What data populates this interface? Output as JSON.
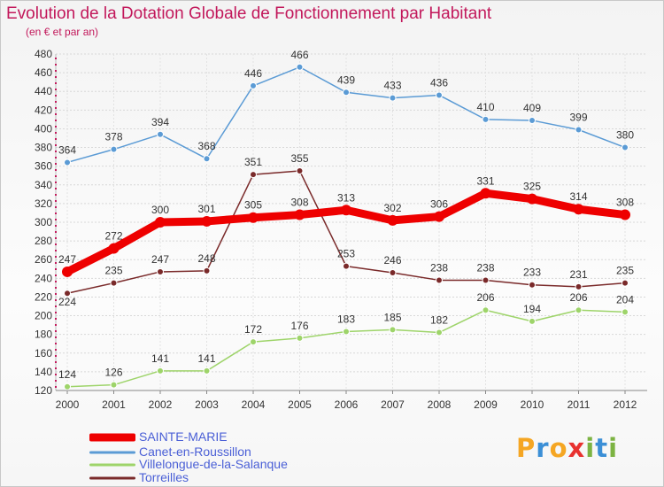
{
  "header": {
    "title": "Evolution de la Dotation Globale de Fonctionnement par Habitant",
    "subtitle": "(en € et par an)"
  },
  "logo": {
    "text": "Proxiti",
    "letters": [
      "P",
      "r",
      "o",
      "x",
      "i",
      "t",
      "i"
    ],
    "colors": [
      "#f5a623",
      "#3b8fd6",
      "#f5a623",
      "#e8312f",
      "#7cb342",
      "#3b8fd6",
      "#7cb342"
    ]
  },
  "legend": {
    "items": [
      {
        "label": "SAINTE-MARIE",
        "color": "#ee0000",
        "thick": true
      },
      {
        "label": "Canet-en-Roussillon",
        "color": "#5b9bd5",
        "thick": false
      },
      {
        "label": "Villelongue-de-la-Salanque",
        "color": "#9ed46a",
        "thick": false
      },
      {
        "label": "Torreilles",
        "color": "#7a2a2a",
        "thick": false
      }
    ]
  },
  "chart_data": {
    "type": "line",
    "title": "Evolution de la Dotation Globale de Fonctionnement par Habitant",
    "subtitle": "(en € et par an)",
    "x": [
      "2000",
      "2001",
      "2002",
      "2003",
      "2004",
      "2005",
      "2006",
      "2007",
      "2008",
      "2009",
      "2010",
      "2011",
      "2012"
    ],
    "ylim": [
      120,
      480
    ],
    "yticks": [
      120,
      140,
      160,
      180,
      200,
      220,
      240,
      260,
      280,
      300,
      320,
      340,
      360,
      380,
      400,
      420,
      440,
      460,
      480
    ],
    "grid": true,
    "legend_position": "bottom-left",
    "series": [
      {
        "name": "Canet-en-Roussillon",
        "color": "#5b9bd5",
        "values": [
          364,
          378,
          394,
          368,
          446,
          466,
          439,
          433,
          436,
          410,
          409,
          399,
          380
        ]
      },
      {
        "name": "Torreilles",
        "color": "#7a2a2a",
        "values": [
          224,
          235,
          247,
          248,
          351,
          355,
          253,
          246,
          238,
          238,
          233,
          231,
          235
        ]
      },
      {
        "name": "Villelongue-de-la-Salanque",
        "color": "#9ed46a",
        "values": [
          124,
          126,
          141,
          141,
          172,
          176,
          183,
          185,
          182,
          206,
          194,
          206,
          204
        ]
      },
      {
        "name": "SAINTE-MARIE",
        "color": "#ee0000",
        "values": [
          247,
          272,
          300,
          301,
          305,
          308,
          313,
          302,
          306,
          331,
          325,
          314,
          308
        ]
      }
    ]
  }
}
